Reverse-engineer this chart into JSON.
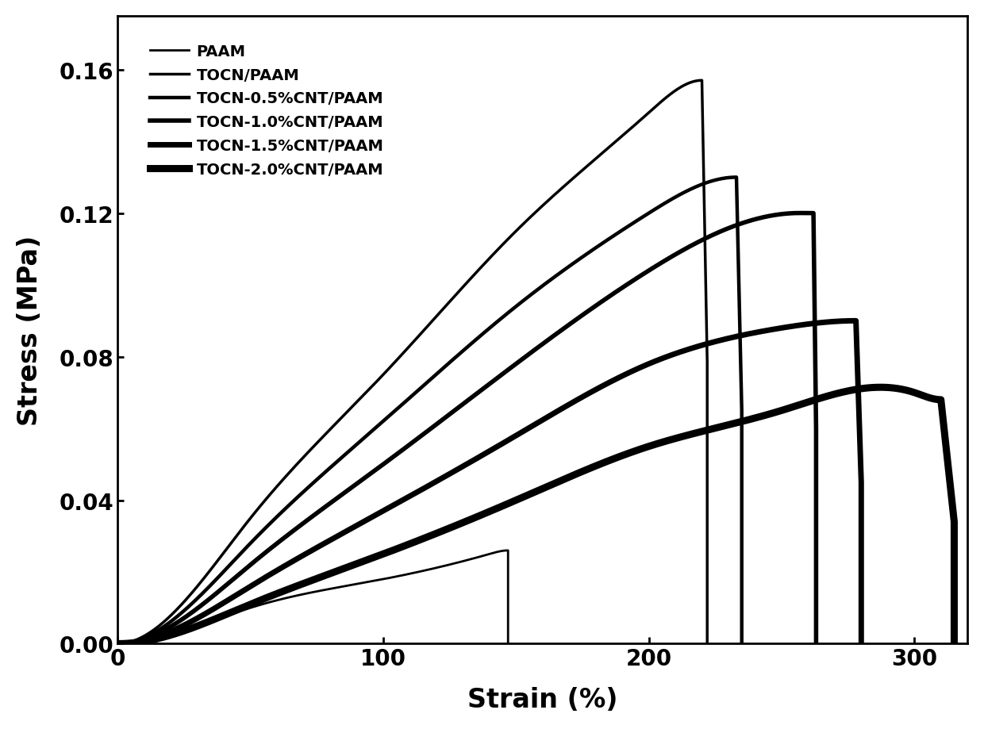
{
  "title": "",
  "xlabel": "Strain (%)",
  "ylabel": "Stress (MPa)",
  "xlim": [
    0,
    320
  ],
  "ylim": [
    0,
    0.175
  ],
  "yticks": [
    0,
    0.04,
    0.08,
    0.12,
    0.16
  ],
  "xticks": [
    0,
    100,
    200,
    300
  ],
  "background_color": "#ffffff",
  "curves": [
    {
      "label": "PAAM",
      "linewidth": 2.0,
      "key_points": [
        [
          0,
          0
        ],
        [
          50,
          0.01
        ],
        [
          100,
          0.018
        ],
        [
          140,
          0.025
        ],
        [
          147,
          0.026
        ],
        [
          147,
          0.0
        ]
      ]
    },
    {
      "label": "TOCN/PAAM",
      "linewidth": 2.5,
      "key_points": [
        [
          0,
          0
        ],
        [
          50,
          0.035
        ],
        [
          100,
          0.075
        ],
        [
          150,
          0.115
        ],
        [
          200,
          0.148
        ],
        [
          220,
          0.157
        ],
        [
          222,
          0.0
        ]
      ]
    },
    {
      "label": "TOCN-0.5%CNT/PAAM",
      "linewidth": 3.2,
      "key_points": [
        [
          0,
          0
        ],
        [
          50,
          0.028
        ],
        [
          100,
          0.062
        ],
        [
          150,
          0.094
        ],
        [
          200,
          0.12
        ],
        [
          233,
          0.13
        ],
        [
          235,
          0.0
        ]
      ]
    },
    {
      "label": "TOCN-1.0%CNT/PAAM",
      "linewidth": 4.0,
      "key_points": [
        [
          0,
          0
        ],
        [
          50,
          0.022
        ],
        [
          100,
          0.05
        ],
        [
          150,
          0.078
        ],
        [
          200,
          0.104
        ],
        [
          255,
          0.12
        ],
        [
          262,
          0.12
        ],
        [
          263,
          0.0
        ]
      ]
    },
    {
      "label": "TOCN-1.5%CNT/PAAM",
      "linewidth": 5.0,
      "key_points": [
        [
          0,
          0
        ],
        [
          50,
          0.016
        ],
        [
          100,
          0.037
        ],
        [
          150,
          0.058
        ],
        [
          200,
          0.078
        ],
        [
          250,
          0.088
        ],
        [
          278,
          0.09
        ],
        [
          280,
          0.0
        ]
      ]
    },
    {
      "label": "TOCN-2.0%CNT/PAAM",
      "linewidth": 6.5,
      "key_points": [
        [
          0,
          0
        ],
        [
          50,
          0.011
        ],
        [
          100,
          0.025
        ],
        [
          150,
          0.04
        ],
        [
          200,
          0.055
        ],
        [
          250,
          0.065
        ],
        [
          300,
          0.07
        ],
        [
          310,
          0.068
        ],
        [
          315,
          0.0
        ]
      ]
    }
  ]
}
